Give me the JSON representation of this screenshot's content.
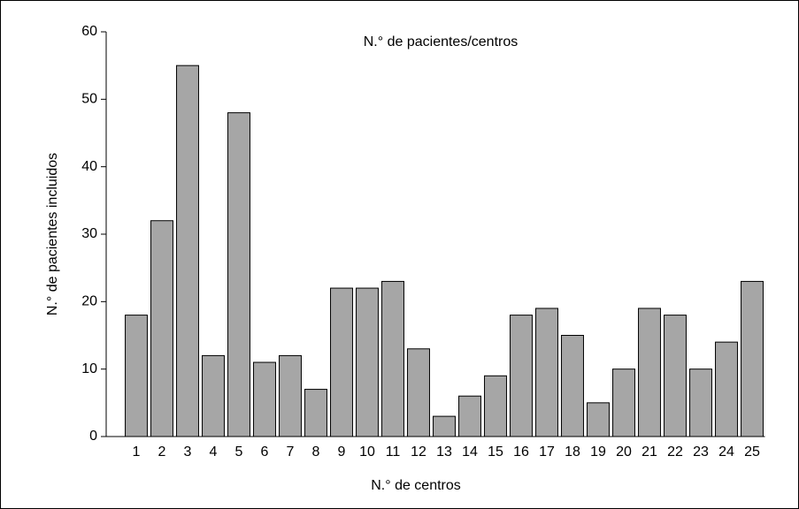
{
  "chart_data": {
    "type": "bar",
    "title": "N.° de pacientes/centros",
    "x_label": "N.° de centros",
    "y_label": "N.° de pacientes incluidos",
    "categories": [
      "1",
      "2",
      "3",
      "4",
      "5",
      "6",
      "7",
      "8",
      "9",
      "10",
      "11",
      "12",
      "13",
      "14",
      "15",
      "16",
      "17",
      "18",
      "19",
      "20",
      "21",
      "22",
      "23",
      "24",
      "25"
    ],
    "values": [
      18,
      32,
      55,
      12,
      48,
      11,
      12,
      7,
      22,
      22,
      23,
      13,
      3,
      6,
      9,
      18,
      19,
      15,
      5,
      10,
      19,
      18,
      10,
      14,
      23
    ],
    "color": "#a6a6a6",
    "ylim": [
      0,
      60
    ],
    "yticks": [
      0,
      10,
      20,
      30,
      40,
      50,
      60
    ],
    "grid": false
  }
}
